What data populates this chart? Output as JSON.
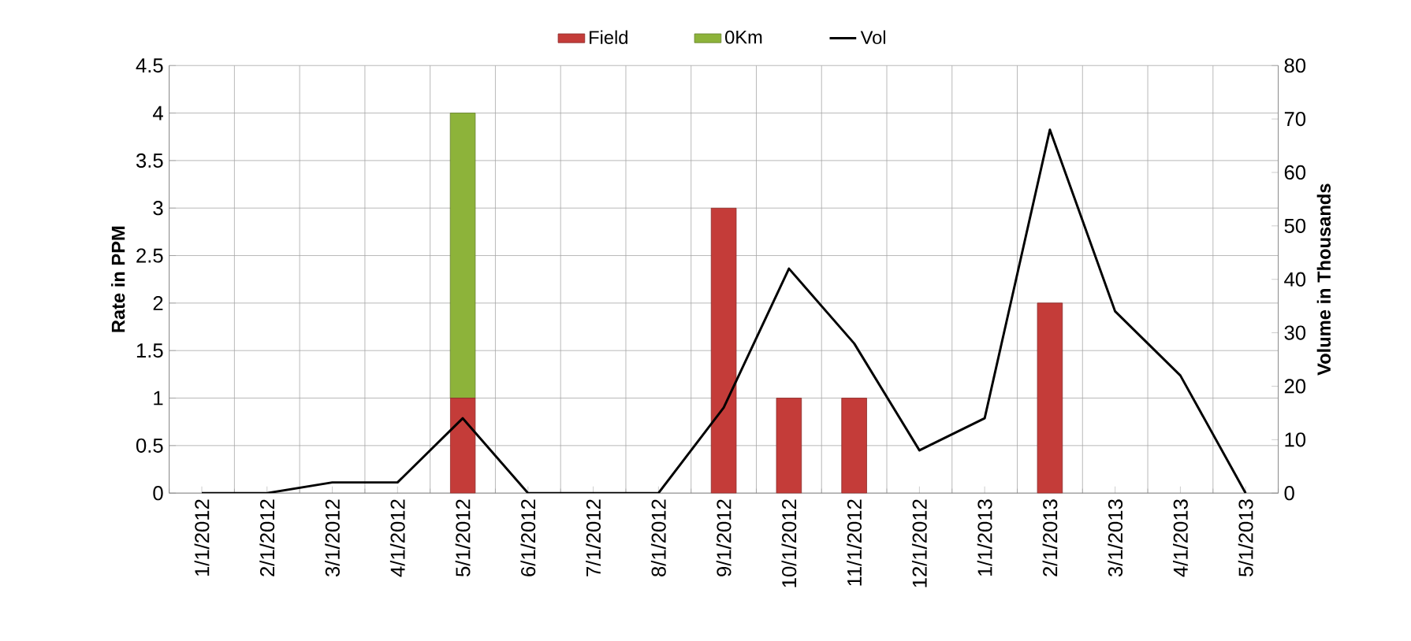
{
  "chart_data": {
    "type": "bar",
    "stacked": true,
    "categories": [
      "1/1/2012",
      "2/1/2012",
      "3/1/2012",
      "4/1/2012",
      "5/1/2012",
      "6/1/2012",
      "7/1/2012",
      "8/1/2012",
      "9/1/2012",
      "10/1/2012",
      "11/1/2012",
      "12/1/2012",
      "1/1/2013",
      "2/1/2013",
      "3/1/2013",
      "4/1/2013",
      "5/1/2013"
    ],
    "series": [
      {
        "name": "Field",
        "color": "#c43c39",
        "values": [
          null,
          null,
          null,
          null,
          1,
          null,
          null,
          null,
          3,
          1,
          1,
          null,
          null,
          2,
          null,
          null,
          null
        ]
      },
      {
        "name": "0Km",
        "color": "#8db33a",
        "values": [
          null,
          null,
          null,
          null,
          3,
          null,
          null,
          null,
          null,
          null,
          null,
          null,
          null,
          null,
          null,
          null,
          null
        ]
      },
      {
        "name": "Vol",
        "type": "line",
        "axis": "y2",
        "color": "#000000",
        "values": [
          0,
          0,
          2,
          2,
          14,
          0,
          0,
          0,
          16,
          42,
          28,
          8,
          14,
          68,
          34,
          22,
          0
        ]
      }
    ],
    "ylabel": "Rate in PPM",
    "y2label": "Volume in Thousands",
    "ylim": [
      0,
      4.5
    ],
    "yticks": [
      0,
      0.5,
      1,
      1.5,
      2,
      2.5,
      3,
      3.5,
      4,
      4.5
    ],
    "y2lim": [
      0,
      80
    ],
    "y2ticks": [
      0,
      10,
      20,
      30,
      40,
      50,
      60,
      70,
      80
    ],
    "grid": true,
    "legend": "top"
  }
}
